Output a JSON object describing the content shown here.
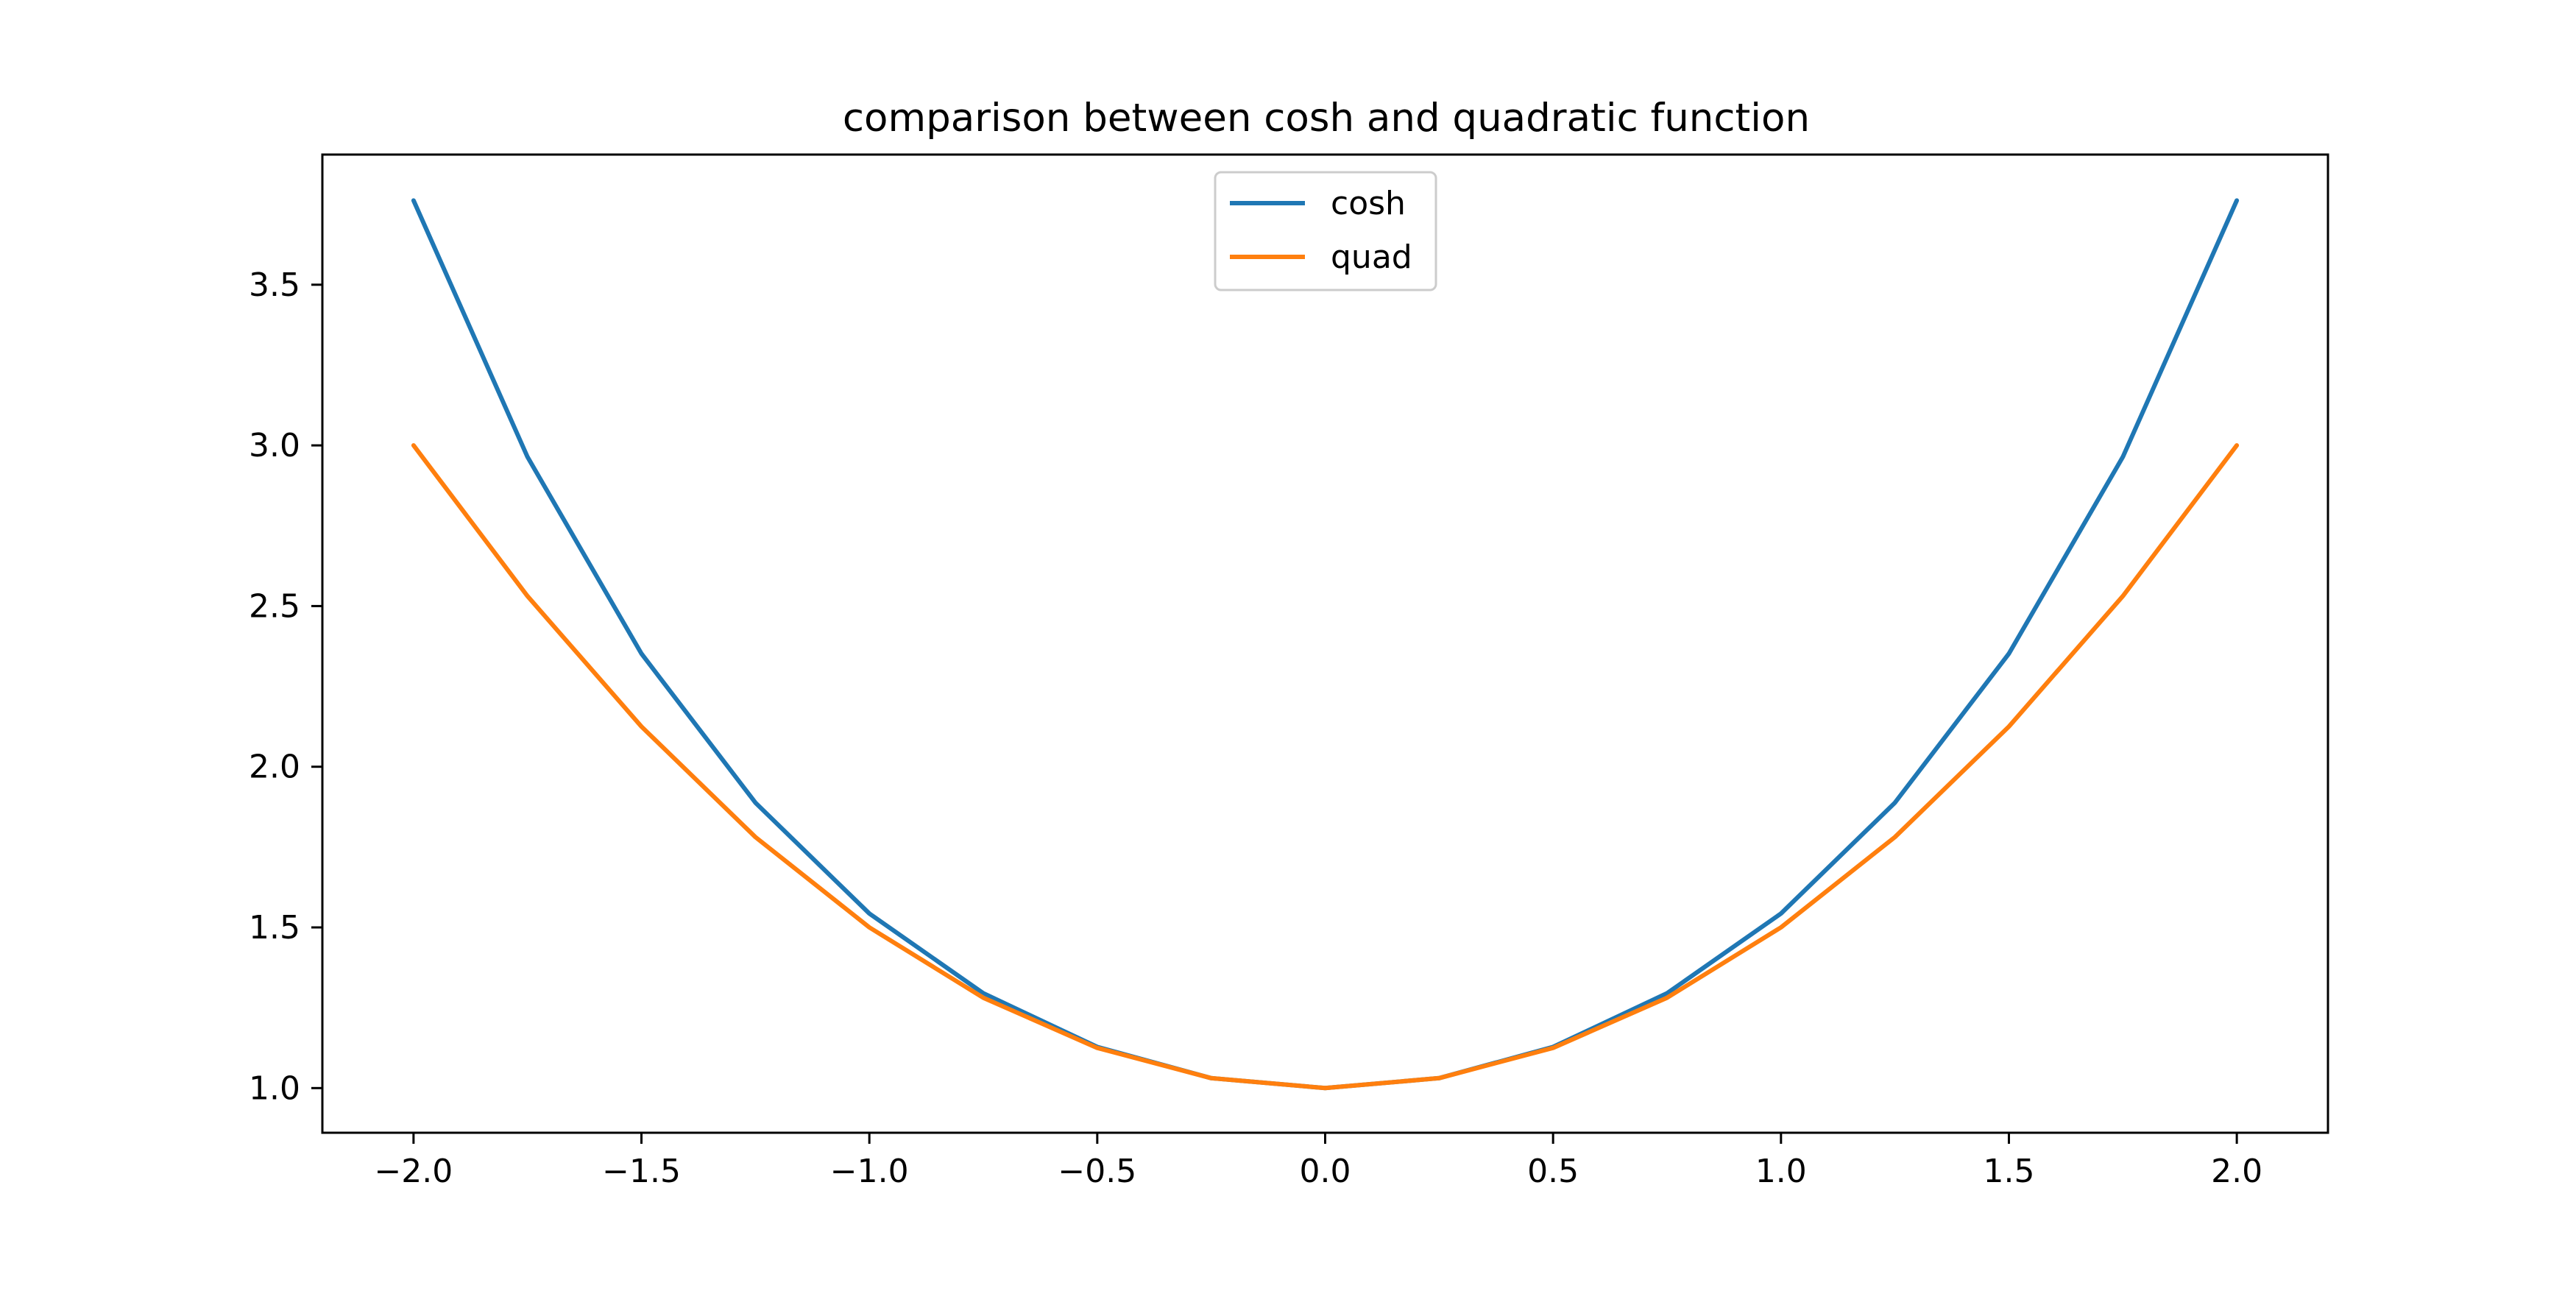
{
  "chart_data": {
    "type": "line",
    "title": "comparison between cosh and quadratic function",
    "xlabel": "",
    "ylabel": "",
    "xlim": [
      -2.2,
      2.2
    ],
    "ylim": [
      0.861,
      3.905
    ],
    "x_ticks": [
      -2.0,
      -1.5,
      -1.0,
      -0.5,
      0.0,
      0.5,
      1.0,
      1.5,
      2.0
    ],
    "x_tick_labels": [
      "−2.0",
      "−1.5",
      "−1.0",
      "−0.5",
      "0.0",
      "0.5",
      "1.0",
      "1.5",
      "2.0"
    ],
    "y_ticks": [
      1.0,
      1.5,
      2.0,
      2.5,
      3.0,
      3.5
    ],
    "y_tick_labels": [
      "1.0",
      "1.5",
      "2.0",
      "2.5",
      "3.0",
      "3.5"
    ],
    "grid": false,
    "legend_position": "upper center",
    "x": [
      -2.0,
      -1.75,
      -1.5,
      -1.25,
      -1.0,
      -0.75,
      -0.5,
      -0.25,
      0.0,
      0.25,
      0.5,
      0.75,
      1.0,
      1.25,
      1.5,
      1.75,
      2.0
    ],
    "series": [
      {
        "name": "cosh",
        "color": "#1f77b4",
        "values": [
          3.762,
          2.964,
          2.352,
          1.888,
          1.543,
          1.295,
          1.128,
          1.031,
          1.0,
          1.031,
          1.128,
          1.295,
          1.543,
          1.888,
          2.352,
          2.964,
          3.762
        ]
      },
      {
        "name": "quad",
        "color": "#ff7f0e",
        "values": [
          3.0,
          2.531,
          2.125,
          1.781,
          1.5,
          1.281,
          1.125,
          1.031,
          1.0,
          1.031,
          1.125,
          1.281,
          1.5,
          1.781,
          2.125,
          2.531,
          3.0
        ]
      }
    ]
  }
}
